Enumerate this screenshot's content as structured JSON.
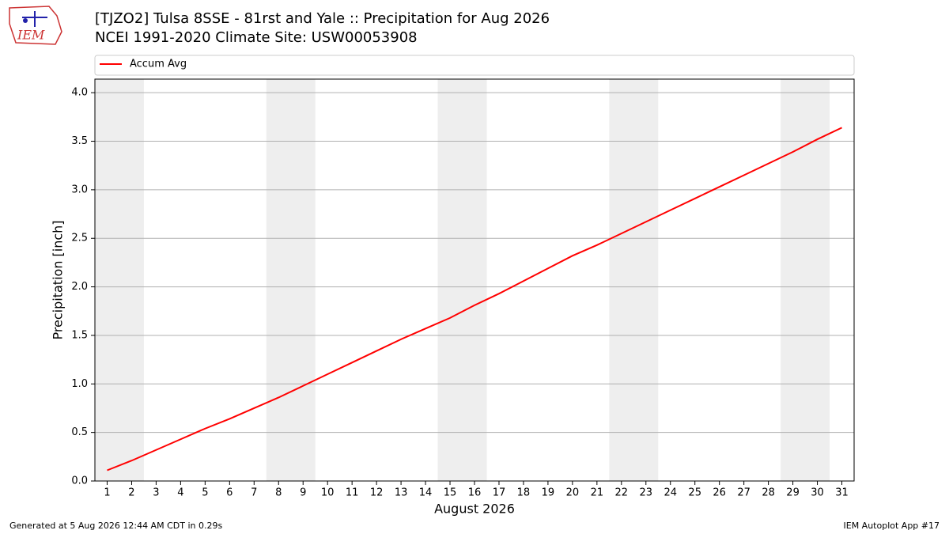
{
  "logo_text": "IEM",
  "chart_data": {
    "type": "line",
    "title": "[TJZO2] Tulsa 8SSE - 81rst and Yale :: Precipitation for Aug 2026",
    "subtitle": "NCEI 1991-2020 Climate Site: USW00053908",
    "x_label": "August 2026",
    "y_label": "Precipitation [inch]",
    "x": [
      1,
      2,
      3,
      4,
      5,
      6,
      7,
      8,
      9,
      10,
      11,
      12,
      13,
      14,
      15,
      16,
      17,
      18,
      19,
      20,
      21,
      22,
      23,
      24,
      25,
      26,
      27,
      28,
      29,
      30,
      31
    ],
    "series": [
      {
        "name": "Accum Avg",
        "color": "#ff0000",
        "values": [
          0.11,
          0.21,
          0.32,
          0.43,
          0.54,
          0.64,
          0.75,
          0.86,
          0.98,
          1.1,
          1.22,
          1.34,
          1.46,
          1.57,
          1.68,
          1.81,
          1.93,
          2.06,
          2.19,
          2.32,
          2.43,
          2.55,
          2.67,
          2.79,
          2.91,
          3.03,
          3.15,
          3.27,
          3.39,
          3.52,
          3.64
        ]
      }
    ],
    "shaded_spans": [
      [
        0.5,
        2.5
      ],
      [
        7.5,
        9.5
      ],
      [
        14.5,
        16.5
      ],
      [
        21.5,
        23.5
      ],
      [
        28.5,
        30.5
      ]
    ],
    "shade_color": "#eeeeee",
    "xlim": [
      0.5,
      31.5
    ],
    "ylim": [
      0,
      4.14
    ],
    "xticks": [
      1,
      2,
      3,
      4,
      5,
      6,
      7,
      8,
      9,
      10,
      11,
      12,
      13,
      14,
      15,
      16,
      17,
      18,
      19,
      20,
      21,
      22,
      23,
      24,
      25,
      26,
      27,
      28,
      29,
      30,
      31
    ],
    "yticks": [
      {
        "value": 0,
        "label": "0.0"
      },
      0.5,
      {
        "value": 1,
        "label": "1.0"
      },
      1.5,
      {
        "value": 2,
        "label": "2.0"
      },
      2.5,
      {
        "value": 3,
        "label": "3.0"
      },
      3.5,
      {
        "value": 4,
        "label": "4.0"
      }
    ],
    "grid": true,
    "legend": "top"
  },
  "footer": {
    "left": "Generated at 5 Aug 2026 12:44 AM CDT in 0.29s",
    "right": "IEM Autoplot App #17"
  }
}
